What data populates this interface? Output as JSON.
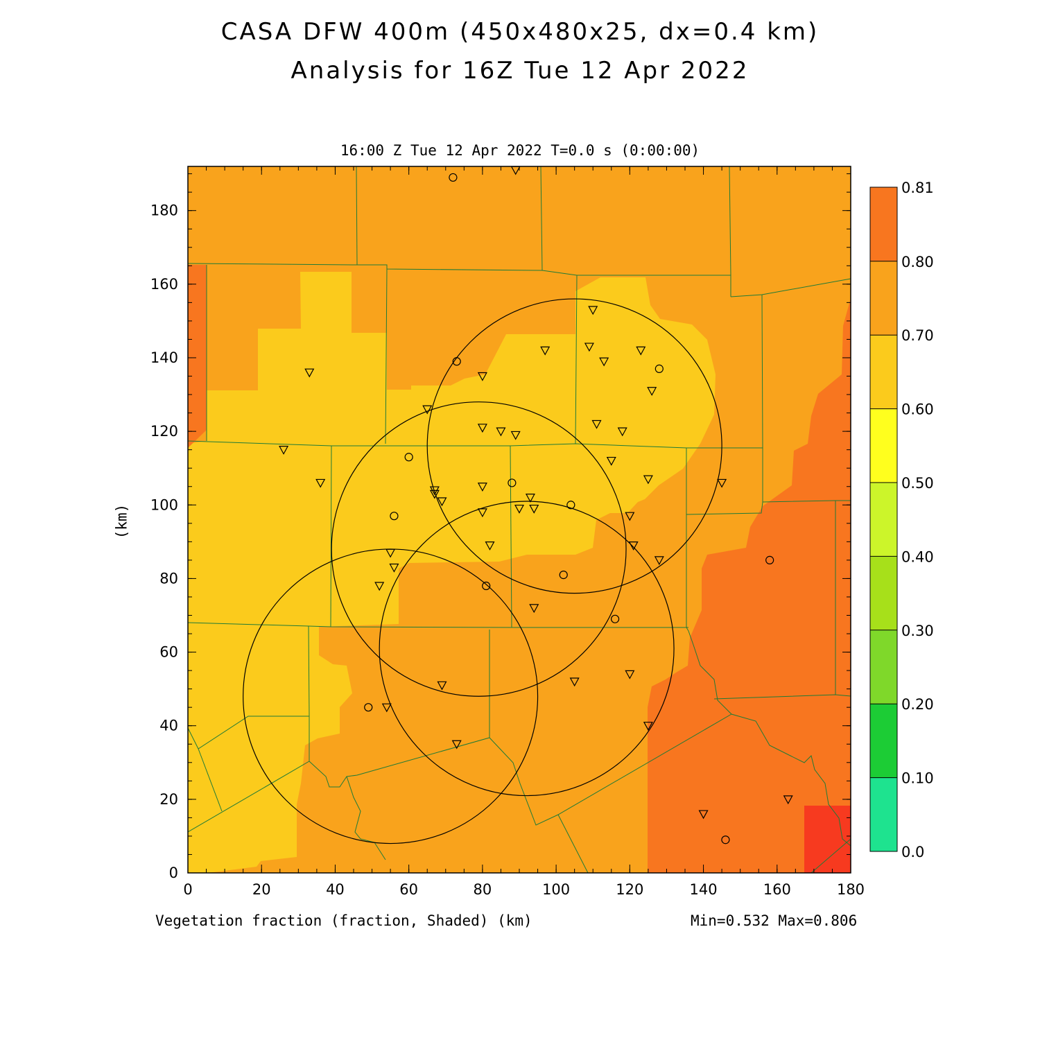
{
  "title": "CASA DFW 400m (450x480x25, dx=0.4 km)",
  "subtitle": "Analysis for 16Z Tue 12 Apr 2022",
  "plot_header": "16:00 Z Tue 12 Apr 2022   T=0.0 s (0:00:00)",
  "x_axis_label": "Vegetation fraction (fraction, Shaded)  (km)",
  "y_axis_label": "(km)",
  "min_max": "Min=0.532 Max=0.806",
  "chart_data": {
    "type": "heatmap",
    "variable": "Vegetation fraction",
    "units": "fraction",
    "xlim": [
      0,
      180
    ],
    "ylim": [
      0,
      192
    ],
    "x_ticks": [
      0,
      20,
      40,
      60,
      80,
      100,
      120,
      140,
      160,
      180
    ],
    "y_ticks": [
      0,
      20,
      40,
      60,
      80,
      100,
      120,
      140,
      160,
      180
    ],
    "min": 0.532,
    "max": 0.806,
    "colorbar": {
      "levels": [
        "0.0",
        "0.10",
        "0.20",
        "0.30",
        "0.40",
        "0.50",
        "0.60",
        "0.70",
        "0.80",
        "0.81"
      ],
      "colors": [
        "#1ee38f",
        "#1ccc35",
        "#7fd82a",
        "#a7e01a",
        "#ccf52a",
        "#ffff1e",
        "#fbcb1c",
        "#f9a31c",
        "#f8761f",
        "#f73a1f"
      ]
    },
    "radar_rings": [
      {
        "center": [
          105,
          116
        ],
        "radius": 40
      },
      {
        "center": [
          79,
          88
        ],
        "radius": 40
      },
      {
        "center": [
          92,
          61
        ],
        "radius": 40
      },
      {
        "center": [
          55,
          48
        ],
        "radius": 40
      }
    ],
    "stations_triangle": [
      [
        89,
        191
      ],
      [
        33,
        136
      ],
      [
        26,
        115
      ],
      [
        36,
        106
      ],
      [
        65,
        126
      ],
      [
        80,
        135
      ],
      [
        97,
        142
      ],
      [
        109,
        143
      ],
      [
        110,
        153
      ],
      [
        123,
        142
      ],
      [
        113,
        139
      ],
      [
        126,
        131
      ],
      [
        111,
        122
      ],
      [
        118,
        120
      ],
      [
        80,
        121
      ],
      [
        85,
        120
      ],
      [
        89,
        119
      ],
      [
        115,
        112
      ],
      [
        125,
        107
      ],
      [
        67,
        104
      ],
      [
        67,
        103
      ],
      [
        69,
        101
      ],
      [
        80,
        105
      ],
      [
        93,
        102
      ],
      [
        94,
        99
      ],
      [
        90,
        99
      ],
      [
        80,
        98
      ],
      [
        120,
        97
      ],
      [
        145,
        106
      ],
      [
        55,
        87
      ],
      [
        56,
        83
      ],
      [
        52,
        78
      ],
      [
        82,
        89
      ],
      [
        121,
        89
      ],
      [
        128,
        85
      ],
      [
        94,
        72
      ],
      [
        69,
        51
      ],
      [
        105,
        52
      ],
      [
        120,
        54
      ],
      [
        54,
        45
      ],
      [
        73,
        35
      ],
      [
        125,
        40
      ],
      [
        163,
        20
      ],
      [
        140,
        16
      ]
    ],
    "stations_circle": [
      [
        72,
        189
      ],
      [
        73,
        139
      ],
      [
        128,
        137
      ],
      [
        60,
        113
      ],
      [
        88,
        106
      ],
      [
        56,
        97
      ],
      [
        104,
        100
      ],
      [
        102,
        81
      ],
      [
        81,
        78
      ],
      [
        116,
        69
      ],
      [
        158,
        85
      ],
      [
        49,
        45
      ],
      [
        146,
        9
      ]
    ]
  }
}
